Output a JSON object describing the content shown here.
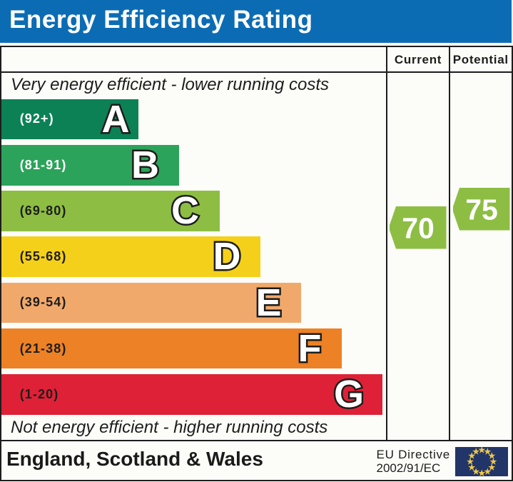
{
  "title": "Energy Efficiency Rating",
  "table": {
    "columns": [
      {
        "label": "Current"
      },
      {
        "label": "Potential"
      }
    ],
    "top_note": "Very energy efficient - lower running costs",
    "bottom_note": "Not energy efficient - higher running costs"
  },
  "chart_data": {
    "type": "bar",
    "title": "Energy Efficiency Rating",
    "categories": [
      "A",
      "B",
      "C",
      "D",
      "E",
      "F",
      "G"
    ],
    "bands": [
      {
        "letter": "A",
        "range_label": "(92+)",
        "range_min": 92,
        "range_max": 100,
        "color": "#0c8156",
        "label_color": "#ffffff"
      },
      {
        "letter": "B",
        "range_label": "(81-91)",
        "range_min": 81,
        "range_max": 91,
        "color": "#2ca35a",
        "label_color": "#ffffff"
      },
      {
        "letter": "C",
        "range_label": "(69-80)",
        "range_min": 69,
        "range_max": 80,
        "color": "#8dbe43",
        "label_color": "#1d1d1b"
      },
      {
        "letter": "D",
        "range_label": "(55-68)",
        "range_min": 55,
        "range_max": 68,
        "color": "#f5d01a",
        "label_color": "#1d1d1b"
      },
      {
        "letter": "E",
        "range_label": "(39-54)",
        "range_min": 39,
        "range_max": 54,
        "color": "#f1a96b",
        "label_color": "#1d1d1b"
      },
      {
        "letter": "F",
        "range_label": "(21-38)",
        "range_min": 21,
        "range_max": 38,
        "color": "#ed8125",
        "label_color": "#1d1d1b"
      },
      {
        "letter": "G",
        "range_label": "(1-20)",
        "range_min": 1,
        "range_max": 20,
        "color": "#df2137",
        "label_color": "#1d1d1b"
      }
    ],
    "current": {
      "value": "70",
      "band": "C",
      "color": "#8dbe43"
    },
    "potential": {
      "value": "75",
      "band": "C",
      "color": "#8dbe43"
    }
  },
  "footer": {
    "region": "England, Scotland & Wales",
    "directive": [
      "EU Directive",
      "2002/91/EC"
    ]
  },
  "colors": {
    "header_bg": "#0c6cb3",
    "header_text": "#ffffff",
    "border": "#1d1d1b",
    "cell_bg": "#fcfcf9",
    "eu_flag_blue": "#223568",
    "eu_flag_star": "#eec84a"
  }
}
